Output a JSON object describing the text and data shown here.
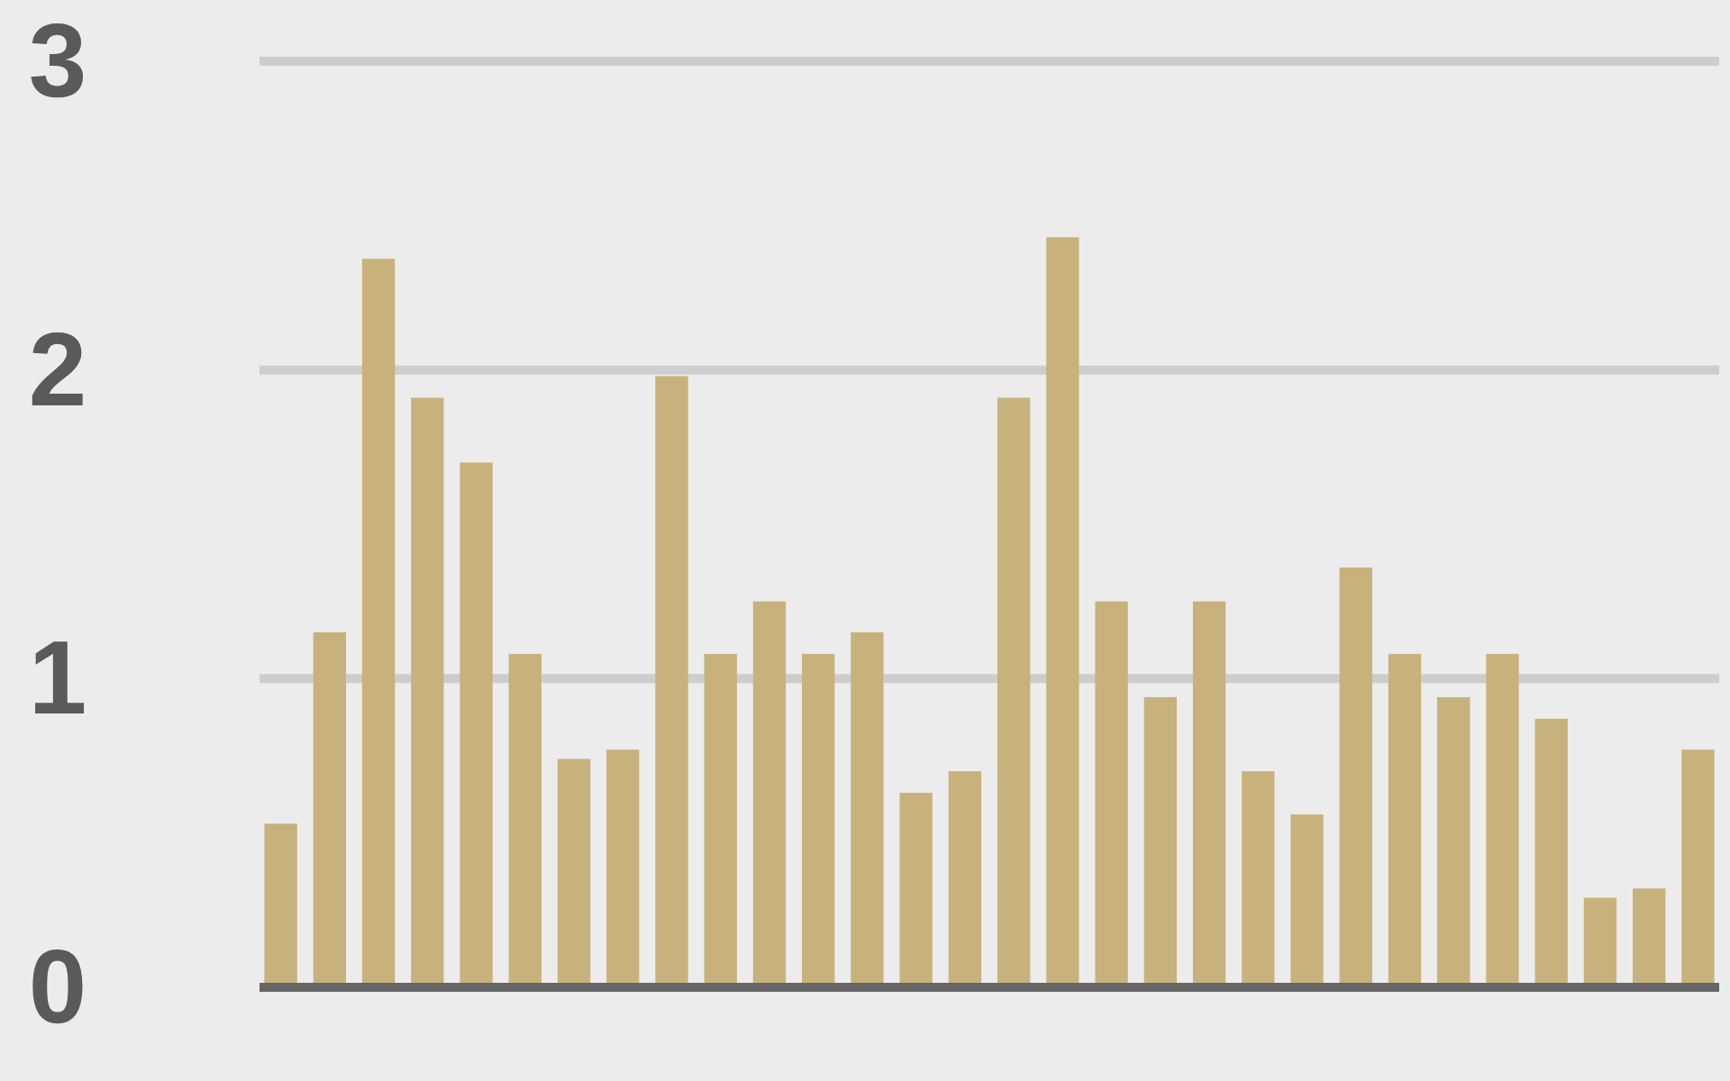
{
  "chart_data": {
    "type": "bar",
    "categories": [
      null,
      null,
      null,
      null,
      null,
      null,
      null,
      null,
      null,
      null,
      null,
      null,
      null,
      null,
      null,
      null,
      null,
      null,
      null,
      null,
      null,
      null,
      null,
      null,
      null,
      null,
      null,
      null,
      null,
      null
    ],
    "values": [
      0.53,
      1.15,
      2.36,
      1.91,
      1.7,
      1.08,
      0.74,
      0.77,
      1.98,
      1.08,
      1.25,
      1.08,
      1.15,
      0.63,
      0.7,
      1.91,
      2.43,
      1.25,
      0.94,
      1.25,
      0.7,
      0.56,
      1.36,
      1.08,
      0.94,
      1.08,
      0.87,
      0.29,
      0.32,
      0.77
    ],
    "color": "#c7b27c",
    "ylim": [
      0,
      3
    ],
    "yticks": [
      0,
      1,
      2,
      3
    ],
    "grid": "y"
  }
}
